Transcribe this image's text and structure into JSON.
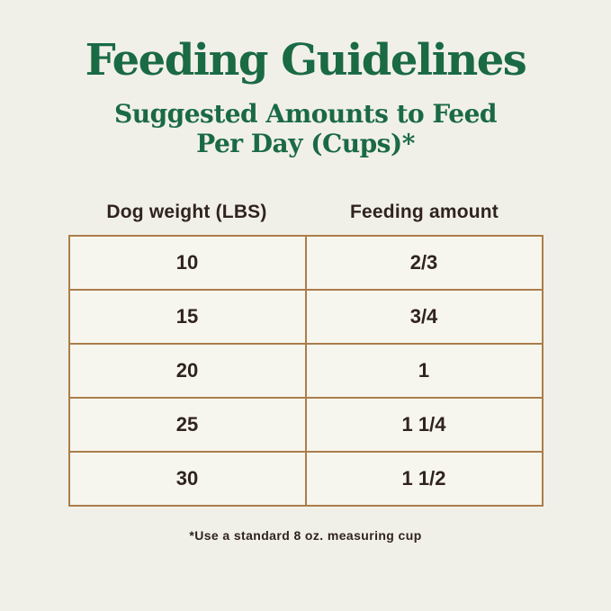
{
  "header": {
    "title": "Feeding Guidelines",
    "subtitle_line1": "Suggested Amounts to Feed",
    "subtitle_line2": "Per Day (Cups)*"
  },
  "footnote": "*Use a standard 8 oz. measuring cup",
  "colors": {
    "background": "#f1f0e8",
    "heading_green": "#1a6a44",
    "table_border_tan": "#ab7d4b",
    "cell_background": "#f7f6ee",
    "body_text_dark": "#30231e"
  },
  "chart_data": {
    "type": "table",
    "title": "Feeding Guidelines",
    "subtitle": "Suggested Amounts to Feed Per Day (Cups)*",
    "columns": [
      "Dog weight (LBS)",
      "Feeding amount"
    ],
    "rows": [
      [
        "10",
        "2/3"
      ],
      [
        "15",
        "3/4"
      ],
      [
        "20",
        "1"
      ],
      [
        "25",
        "1 1/4"
      ],
      [
        "30",
        "1 1/2"
      ]
    ],
    "units": {
      "dog_weight": "LBS",
      "feeding_amount": "cups per day"
    },
    "footnote": "*Use a standard 8 oz. measuring cup",
    "layout": {
      "grid": true,
      "header_row_outside_borders": true
    }
  }
}
